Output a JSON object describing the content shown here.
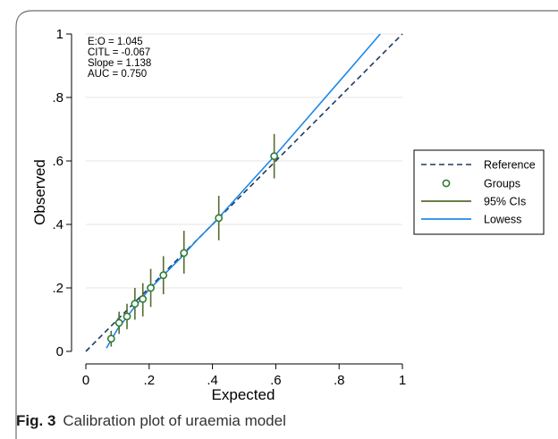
{
  "figure": {
    "caption_label": "Fig. 3",
    "caption_text": "Calibration plot of uraemia model"
  },
  "chart_data": {
    "type": "scatter",
    "title": "",
    "xlabel": "Expected",
    "ylabel": "Observed",
    "xlim": [
      0,
      1
    ],
    "ylim": [
      0,
      1
    ],
    "x_ticks": [
      {
        "value": 0,
        "label": "0"
      },
      {
        "value": 0.2,
        "label": ".2"
      },
      {
        "value": 0.4,
        "label": ".4"
      },
      {
        "value": 0.6,
        "label": ".6"
      },
      {
        "value": 0.8,
        "label": ".8"
      },
      {
        "value": 1,
        "label": "1"
      }
    ],
    "y_ticks": [
      {
        "value": 0,
        "label": "0"
      },
      {
        "value": 0.2,
        "label": ".2"
      },
      {
        "value": 0.4,
        "label": ".4"
      },
      {
        "value": 0.6,
        "label": ".6"
      },
      {
        "value": 0.8,
        "label": ".8"
      },
      {
        "value": 1,
        "label": "1"
      }
    ],
    "grid": "horizontal",
    "annotations": [
      "E:O = 1.045",
      "CITL = -0.067",
      "Slope = 1.138",
      "AUC = 0.750"
    ],
    "legend": {
      "placement": "right",
      "items": [
        {
          "label": "Reference",
          "kind": "dashed-line",
          "color": "#1f3a5c"
        },
        {
          "label": "Groups",
          "kind": "marker",
          "color": "#2e7d32"
        },
        {
          "label": "95% CIs",
          "kind": "line",
          "color": "#556b2f"
        },
        {
          "label": "Lowess",
          "kind": "line",
          "color": "#1e88e5"
        }
      ]
    },
    "reference": {
      "x": [
        0,
        1
      ],
      "y": [
        0,
        1
      ]
    },
    "groups": [
      {
        "x": 0.08,
        "y": 0.04,
        "lo": 0.015,
        "hi": 0.065
      },
      {
        "x": 0.105,
        "y": 0.09,
        "lo": 0.055,
        "hi": 0.125
      },
      {
        "x": 0.13,
        "y": 0.11,
        "lo": 0.07,
        "hi": 0.15
      },
      {
        "x": 0.155,
        "y": 0.15,
        "lo": 0.1,
        "hi": 0.2
      },
      {
        "x": 0.18,
        "y": 0.165,
        "lo": 0.11,
        "hi": 0.215
      },
      {
        "x": 0.205,
        "y": 0.2,
        "lo": 0.14,
        "hi": 0.26
      },
      {
        "x": 0.245,
        "y": 0.24,
        "lo": 0.18,
        "hi": 0.3
      },
      {
        "x": 0.31,
        "y": 0.31,
        "lo": 0.245,
        "hi": 0.38
      },
      {
        "x": 0.42,
        "y": 0.42,
        "lo": 0.35,
        "hi": 0.49
      },
      {
        "x": 0.595,
        "y": 0.615,
        "lo": 0.545,
        "hi": 0.685
      }
    ],
    "lowess": {
      "x": [
        0.065,
        0.1,
        0.15,
        0.2,
        0.25,
        0.3,
        0.35,
        0.4,
        0.45,
        0.5,
        0.6,
        0.7,
        0.8,
        0.9,
        0.93
      ],
      "y": [
        0.01,
        0.07,
        0.135,
        0.195,
        0.245,
        0.295,
        0.35,
        0.4,
        0.455,
        0.51,
        0.62,
        0.735,
        0.85,
        0.965,
        1.0
      ]
    },
    "colors": {
      "reference": "#1f3a5c",
      "groups": "#2e7d32",
      "ci": "#556b2f",
      "lowess": "#1e88e5",
      "grid": "#e6e6e6",
      "axis": "#000000"
    }
  }
}
